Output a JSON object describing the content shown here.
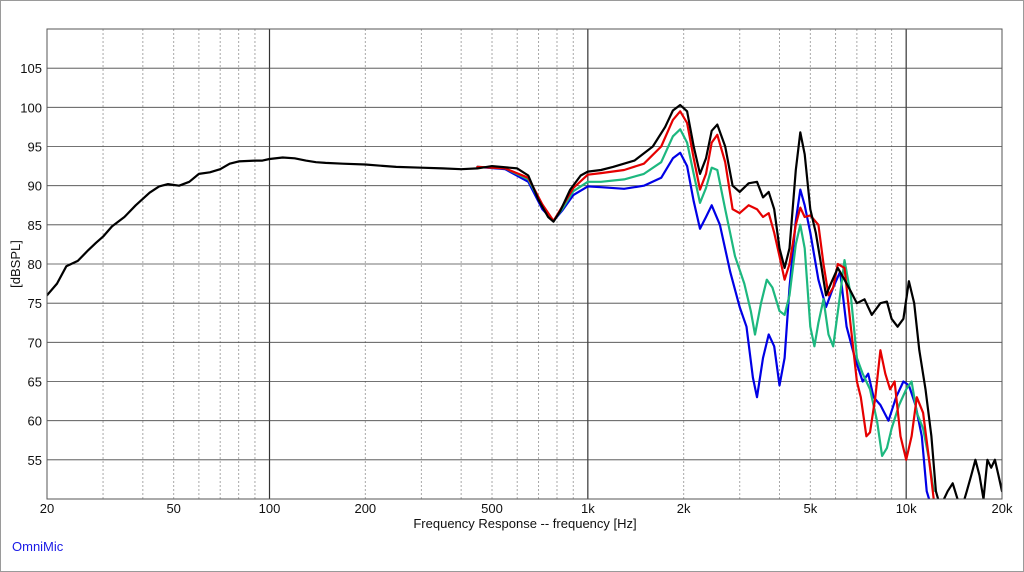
{
  "app_label": "OmniMic",
  "chart_data": {
    "type": "line",
    "xlabel": "Frequency Response -- frequency [Hz]",
    "ylabel": "[dBSPL]",
    "x_scale": "log",
    "xlim": [
      20,
      20000
    ],
    "ylim": [
      50,
      110
    ],
    "x_ticks": [
      {
        "value": 20,
        "label": "20"
      },
      {
        "value": 50,
        "label": "50"
      },
      {
        "value": 100,
        "label": "100"
      },
      {
        "value": 200,
        "label": "200"
      },
      {
        "value": 500,
        "label": "500"
      },
      {
        "value": 1000,
        "label": "1k"
      },
      {
        "value": 2000,
        "label": "2k"
      },
      {
        "value": 5000,
        "label": "5k"
      },
      {
        "value": 10000,
        "label": "10k"
      },
      {
        "value": 20000,
        "label": "20k"
      }
    ],
    "y_ticks": [
      55,
      60,
      65,
      70,
      75,
      80,
      85,
      90,
      95,
      100,
      105
    ],
    "grid": true,
    "legend": false,
    "series": [
      {
        "color": "#0000e6",
        "points": [
          [
            450,
            92.4
          ],
          [
            550,
            92.1
          ],
          [
            650,
            90.5
          ],
          [
            720,
            87
          ],
          [
            780,
            85.5
          ],
          [
            830,
            86.8
          ],
          [
            900,
            88.8
          ],
          [
            1000,
            89.9
          ],
          [
            1100,
            89.8
          ],
          [
            1300,
            89.6
          ],
          [
            1500,
            90
          ],
          [
            1700,
            91
          ],
          [
            1850,
            93.5
          ],
          [
            1950,
            94.2
          ],
          [
            2050,
            92.5
          ],
          [
            2150,
            88
          ],
          [
            2250,
            84.5
          ],
          [
            2350,
            86
          ],
          [
            2450,
            87.5
          ],
          [
            2600,
            85
          ],
          [
            2800,
            79
          ],
          [
            3000,
            74.5
          ],
          [
            3150,
            72
          ],
          [
            3300,
            65.5
          ],
          [
            3400,
            63
          ],
          [
            3550,
            68
          ],
          [
            3700,
            71
          ],
          [
            3850,
            69.5
          ],
          [
            4000,
            64.5
          ],
          [
            4150,
            68
          ],
          [
            4300,
            77
          ],
          [
            4500,
            85.5
          ],
          [
            4650,
            89.5
          ],
          [
            4800,
            87.5
          ],
          [
            5000,
            84
          ],
          [
            5300,
            78
          ],
          [
            5600,
            74.5
          ],
          [
            5900,
            77
          ],
          [
            6200,
            79
          ],
          [
            6500,
            72
          ],
          [
            6900,
            68
          ],
          [
            7300,
            65
          ],
          [
            7600,
            66
          ],
          [
            7900,
            63
          ],
          [
            8300,
            62
          ],
          [
            8800,
            60
          ],
          [
            9300,
            63
          ],
          [
            9800,
            65
          ],
          [
            10200,
            64.5
          ],
          [
            10700,
            62
          ],
          [
            11200,
            58
          ],
          [
            11600,
            51
          ],
          [
            12000,
            49
          ]
        ]
      },
      {
        "color": "#1db87f",
        "points": [
          [
            450,
            92.4
          ],
          [
            550,
            92.2
          ],
          [
            650,
            90.8
          ],
          [
            720,
            87.4
          ],
          [
            780,
            85.5
          ],
          [
            830,
            87
          ],
          [
            900,
            89.3
          ],
          [
            1000,
            90.5
          ],
          [
            1100,
            90.5
          ],
          [
            1300,
            90.8
          ],
          [
            1500,
            91.5
          ],
          [
            1700,
            93
          ],
          [
            1850,
            96.3
          ],
          [
            1950,
            97.2
          ],
          [
            2050,
            95.5
          ],
          [
            2150,
            91.5
          ],
          [
            2250,
            87.8
          ],
          [
            2350,
            89.7
          ],
          [
            2450,
            92.3
          ],
          [
            2550,
            92
          ],
          [
            2700,
            87
          ],
          [
            2900,
            81
          ],
          [
            3100,
            77.5
          ],
          [
            3250,
            74
          ],
          [
            3350,
            71
          ],
          [
            3500,
            75
          ],
          [
            3650,
            78
          ],
          [
            3800,
            77
          ],
          [
            4000,
            74
          ],
          [
            4150,
            73.5
          ],
          [
            4300,
            76
          ],
          [
            4500,
            82.5
          ],
          [
            4650,
            85
          ],
          [
            4800,
            82
          ],
          [
            5000,
            72
          ],
          [
            5150,
            69.5
          ],
          [
            5300,
            72.5
          ],
          [
            5500,
            75.5
          ],
          [
            5700,
            71
          ],
          [
            5900,
            69.5
          ],
          [
            6150,
            75
          ],
          [
            6400,
            80.5
          ],
          [
            6700,
            76
          ],
          [
            7000,
            68
          ],
          [
            7300,
            66
          ],
          [
            7700,
            64
          ],
          [
            8100,
            60
          ],
          [
            8400,
            55.5
          ],
          [
            8700,
            56.5
          ],
          [
            9000,
            59
          ],
          [
            9500,
            62
          ],
          [
            10000,
            64
          ],
          [
            10400,
            65
          ],
          [
            10800,
            61
          ],
          [
            11300,
            59
          ],
          [
            11800,
            55
          ],
          [
            12200,
            51
          ]
        ]
      },
      {
        "color": "#e60000",
        "points": [
          [
            450,
            92.4
          ],
          [
            550,
            92.2
          ],
          [
            650,
            91
          ],
          [
            720,
            87.6
          ],
          [
            780,
            85.5
          ],
          [
            830,
            87.3
          ],
          [
            900,
            89.7
          ],
          [
            1000,
            91.4
          ],
          [
            1100,
            91.6
          ],
          [
            1300,
            92
          ],
          [
            1500,
            92.8
          ],
          [
            1700,
            95
          ],
          [
            1850,
            98.4
          ],
          [
            1950,
            99.5
          ],
          [
            2050,
            98
          ],
          [
            2150,
            93.5
          ],
          [
            2250,
            89.5
          ],
          [
            2350,
            91.5
          ],
          [
            2450,
            95.5
          ],
          [
            2550,
            96.5
          ],
          [
            2700,
            93
          ],
          [
            2850,
            87
          ],
          [
            3000,
            86.5
          ],
          [
            3200,
            87.5
          ],
          [
            3400,
            87
          ],
          [
            3550,
            86
          ],
          [
            3700,
            86.5
          ],
          [
            3850,
            84
          ],
          [
            4000,
            81
          ],
          [
            4150,
            78
          ],
          [
            4300,
            80
          ],
          [
            4500,
            85
          ],
          [
            4650,
            87.2
          ],
          [
            4800,
            86
          ],
          [
            5000,
            86.2
          ],
          [
            5300,
            85
          ],
          [
            5500,
            80
          ],
          [
            5700,
            76
          ],
          [
            5900,
            77
          ],
          [
            6100,
            80
          ],
          [
            6400,
            79.5
          ],
          [
            6700,
            72
          ],
          [
            7000,
            65
          ],
          [
            7200,
            63
          ],
          [
            7500,
            58
          ],
          [
            7700,
            58.5
          ],
          [
            8000,
            63
          ],
          [
            8300,
            69
          ],
          [
            8600,
            66
          ],
          [
            8900,
            64
          ],
          [
            9200,
            65
          ],
          [
            9600,
            58
          ],
          [
            10000,
            55
          ],
          [
            10400,
            58
          ],
          [
            10800,
            63
          ],
          [
            11300,
            61
          ],
          [
            11800,
            55
          ],
          [
            12200,
            50
          ]
        ]
      },
      {
        "color": "#000000",
        "points": [
          [
            20,
            76
          ],
          [
            21.5,
            77.5
          ],
          [
            23,
            79.7
          ],
          [
            25,
            80.4
          ],
          [
            27,
            81.8
          ],
          [
            28.5,
            82.7
          ],
          [
            30,
            83.5
          ],
          [
            32,
            84.8
          ],
          [
            35,
            86
          ],
          [
            38,
            87.5
          ],
          [
            42,
            89.1
          ],
          [
            45,
            89.9
          ],
          [
            48,
            90.2
          ],
          [
            52,
            90
          ],
          [
            56,
            90.5
          ],
          [
            60,
            91.5
          ],
          [
            65,
            91.7
          ],
          [
            70,
            92.1
          ],
          [
            75,
            92.8
          ],
          [
            80,
            93.1
          ],
          [
            90,
            93.2
          ],
          [
            95,
            93.2
          ],
          [
            100,
            93.4
          ],
          [
            110,
            93.6
          ],
          [
            120,
            93.5
          ],
          [
            130,
            93.2
          ],
          [
            140,
            93
          ],
          [
            150,
            92.9
          ],
          [
            170,
            92.8
          ],
          [
            200,
            92.7
          ],
          [
            250,
            92.4
          ],
          [
            300,
            92.3
          ],
          [
            350,
            92.2
          ],
          [
            400,
            92.1
          ],
          [
            450,
            92.2
          ],
          [
            500,
            92.5
          ],
          [
            600,
            92.2
          ],
          [
            650,
            91.3
          ],
          [
            700,
            88.2
          ],
          [
            750,
            86
          ],
          [
            780,
            85.4
          ],
          [
            820,
            86.8
          ],
          [
            880,
            89.5
          ],
          [
            950,
            91.3
          ],
          [
            1000,
            91.8
          ],
          [
            1100,
            92
          ],
          [
            1200,
            92.4
          ],
          [
            1400,
            93.2
          ],
          [
            1600,
            95
          ],
          [
            1750,
            97.5
          ],
          [
            1850,
            99.6
          ],
          [
            1950,
            100.3
          ],
          [
            2050,
            99.5
          ],
          [
            2150,
            95
          ],
          [
            2250,
            91.5
          ],
          [
            2350,
            93.5
          ],
          [
            2450,
            97
          ],
          [
            2550,
            97.8
          ],
          [
            2700,
            95
          ],
          [
            2850,
            90
          ],
          [
            3000,
            89.2
          ],
          [
            3200,
            90.3
          ],
          [
            3400,
            90.5
          ],
          [
            3550,
            88.5
          ],
          [
            3700,
            89.2
          ],
          [
            3850,
            87
          ],
          [
            4000,
            82
          ],
          [
            4150,
            79.5
          ],
          [
            4300,
            82
          ],
          [
            4500,
            92
          ],
          [
            4650,
            96.8
          ],
          [
            4800,
            94
          ],
          [
            5000,
            87
          ],
          [
            5200,
            84
          ],
          [
            5400,
            80
          ],
          [
            5600,
            76
          ],
          [
            5800,
            77.5
          ],
          [
            6100,
            79.5
          ],
          [
            6400,
            78
          ],
          [
            6700,
            76.5
          ],
          [
            7000,
            75
          ],
          [
            7400,
            75.5
          ],
          [
            7800,
            73.5
          ],
          [
            8300,
            75
          ],
          [
            8700,
            75.2
          ],
          [
            9000,
            73
          ],
          [
            9400,
            72
          ],
          [
            9800,
            73
          ],
          [
            10200,
            77.8
          ],
          [
            10600,
            75
          ],
          [
            11000,
            69
          ],
          [
            11500,
            64
          ],
          [
            12000,
            58
          ],
          [
            12400,
            51
          ],
          [
            12800,
            49
          ],
          [
            13500,
            51
          ],
          [
            14000,
            52
          ],
          [
            14500,
            50
          ],
          [
            15000,
            49
          ],
          [
            15500,
            51
          ],
          [
            16000,
            53
          ],
          [
            16500,
            55
          ],
          [
            17000,
            53
          ],
          [
            17500,
            50
          ],
          [
            18000,
            55
          ],
          [
            18500,
            54
          ],
          [
            19000,
            55
          ],
          [
            19500,
            53
          ],
          [
            20000,
            51
          ]
        ]
      }
    ]
  }
}
